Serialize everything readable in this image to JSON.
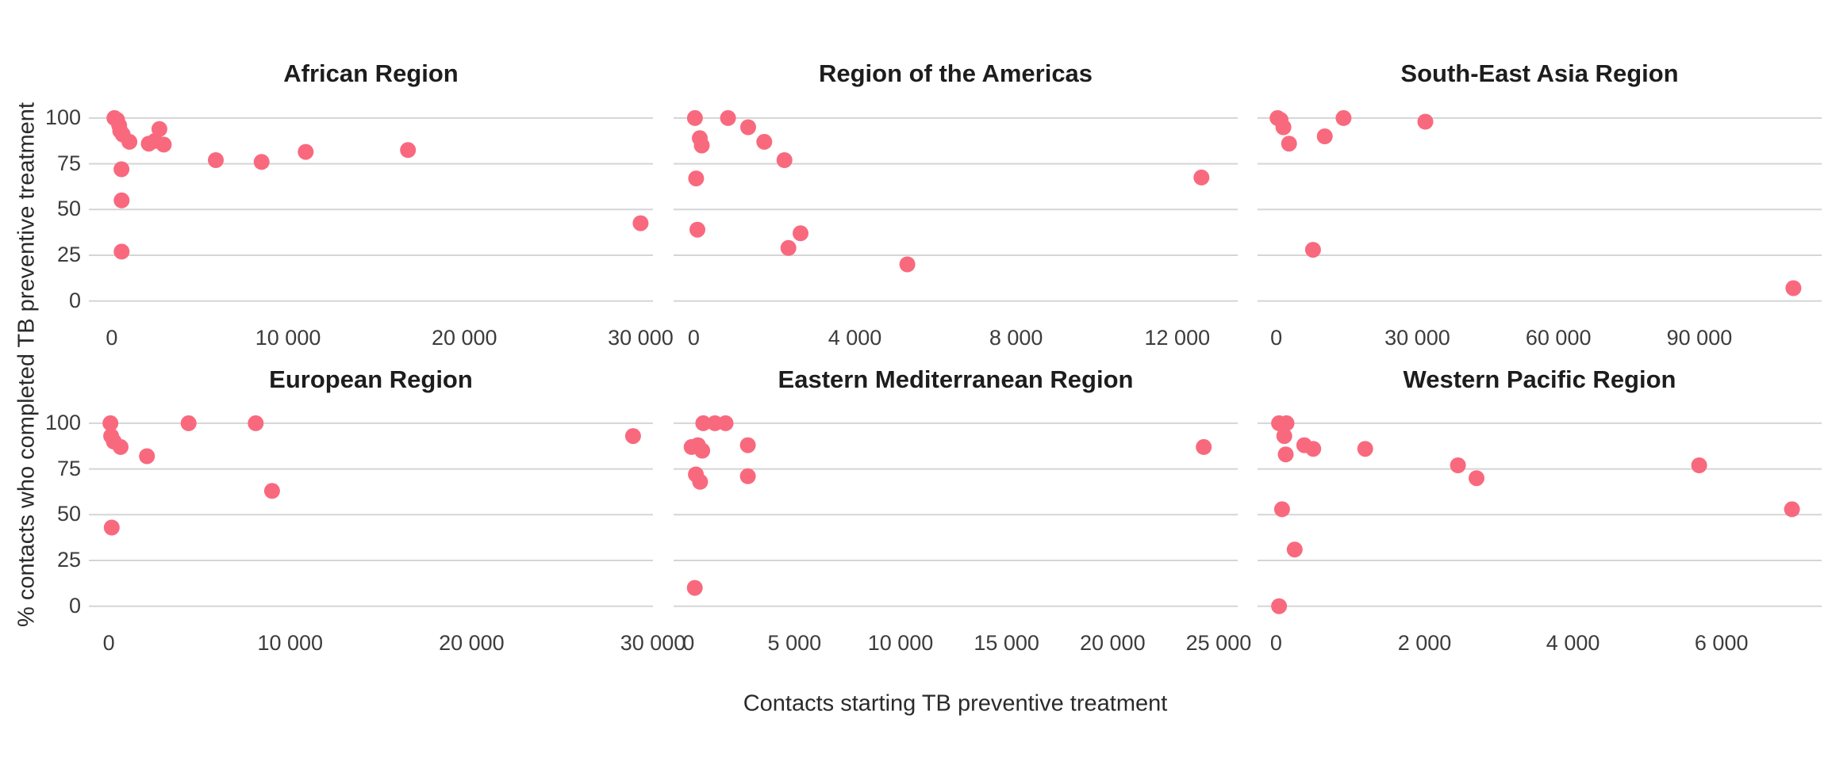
{
  "chart_data": {
    "type": "scatter",
    "xlabel": "Contacts starting TB preventive treatment",
    "ylabel": "% contacts who completed TB preventive treatment",
    "colors": {
      "point": "#F9697E",
      "gridline": "#D5D5D5",
      "panel_title": "#1D1D1D",
      "tick_text": "#3C3C3C",
      "axis_label_text": "#2A2A2A",
      "background": "#FFFFFF"
    },
    "grid": "horizontal-only",
    "legend": "none",
    "ylim": [
      -7.5,
      108.2
    ],
    "yticks": [
      {
        "v": 100,
        "label": "100"
      },
      {
        "v": 75,
        "label": "75"
      },
      {
        "v": 50,
        "label": "50"
      },
      {
        "v": 25,
        "label": "25"
      },
      {
        "v": 0,
        "label": "0"
      }
    ],
    "panels": [
      {
        "title": "African Region",
        "row": 0,
        "col": 0,
        "xlim": [
          -1300,
          30700
        ],
        "xticks": [
          {
            "v": 0,
            "label": "0"
          },
          {
            "v": 10000,
            "label": "10 000"
          },
          {
            "v": 20000,
            "label": "20 000"
          },
          {
            "v": 30000,
            "label": "30 000"
          }
        ],
        "points": [
          [
            150,
            100
          ],
          [
            300,
            99
          ],
          [
            420,
            96
          ],
          [
            480,
            93
          ],
          [
            620,
            91
          ],
          [
            1000,
            87
          ],
          [
            2100,
            86
          ],
          [
            2450,
            87.5
          ],
          [
            2700,
            94
          ],
          [
            2950,
            85.5
          ],
          [
            550,
            72
          ],
          [
            560,
            55
          ],
          [
            560,
            27
          ],
          [
            5900,
            77
          ],
          [
            8500,
            76
          ],
          [
            11000,
            81.5
          ],
          [
            16800,
            82.5
          ],
          [
            30000,
            42.5
          ]
        ]
      },
      {
        "title": "Region of the Americas",
        "row": 0,
        "col": 1,
        "xlim": [
          -500,
          13500
        ],
        "xticks": [
          {
            "v": 0,
            "label": "0"
          },
          {
            "v": 4000,
            "label": "4 000"
          },
          {
            "v": 8000,
            "label": "8 000"
          },
          {
            "v": 12000,
            "label": "12 000"
          }
        ],
        "points": [
          [
            30,
            100
          ],
          [
            850,
            100
          ],
          [
            1350,
            95
          ],
          [
            1750,
            87
          ],
          [
            2250,
            77
          ],
          [
            150,
            89
          ],
          [
            200,
            85
          ],
          [
            60,
            67
          ],
          [
            90,
            39
          ],
          [
            2650,
            37
          ],
          [
            2350,
            29
          ],
          [
            5300,
            20
          ],
          [
            12600,
            67.5
          ]
        ]
      },
      {
        "title": "South-East Asia Region",
        "row": 0,
        "col": 2,
        "xlim": [
          -4000,
          116000
        ],
        "xticks": [
          {
            "v": 0,
            "label": "0"
          },
          {
            "v": 30000,
            "label": "30 000"
          },
          {
            "v": 60000,
            "label": "60 000"
          },
          {
            "v": 90000,
            "label": "90 000"
          }
        ],
        "points": [
          [
            250,
            100
          ],
          [
            900,
            99
          ],
          [
            1500,
            95
          ],
          [
            2700,
            86
          ],
          [
            10300,
            90
          ],
          [
            14300,
            100
          ],
          [
            31700,
            98
          ],
          [
            7800,
            28
          ],
          [
            110000,
            7
          ]
        ]
      },
      {
        "title": "European Region",
        "row": 1,
        "col": 0,
        "xlim": [
          -1100,
          30000
        ],
        "xticks": [
          {
            "v": 0,
            "label": "0"
          },
          {
            "v": 10000,
            "label": "10 000"
          },
          {
            "v": 20000,
            "label": "20 000"
          },
          {
            "v": 30000,
            "label": "30 000"
          }
        ],
        "points": [
          [
            90,
            100
          ],
          [
            130,
            93
          ],
          [
            280,
            90
          ],
          [
            650,
            87
          ],
          [
            2100,
            82
          ],
          [
            4400,
            100
          ],
          [
            8100,
            100
          ],
          [
            9000,
            63
          ],
          [
            160,
            43
          ],
          [
            28900,
            93
          ]
        ]
      },
      {
        "title": "Eastern Mediterranean Region",
        "row": 1,
        "col": 1,
        "xlim": [
          -700,
          25900
        ],
        "xticks": [
          {
            "v": 0,
            "label": "0"
          },
          {
            "v": 5000,
            "label": "5 000"
          },
          {
            "v": 10000,
            "label": "10 000"
          },
          {
            "v": 15000,
            "label": "15 000"
          },
          {
            "v": 20000,
            "label": "20 000"
          },
          {
            "v": 25000,
            "label": "25 000"
          }
        ],
        "points": [
          [
            700,
            100
          ],
          [
            1250,
            100
          ],
          [
            1750,
            100
          ],
          [
            150,
            87
          ],
          [
            450,
            88
          ],
          [
            650,
            85
          ],
          [
            2800,
            88
          ],
          [
            2800,
            71
          ],
          [
            350,
            72
          ],
          [
            550,
            68
          ],
          [
            300,
            10
          ],
          [
            24300,
            87
          ]
        ]
      },
      {
        "title": "Western Pacific Region",
        "row": 1,
        "col": 2,
        "xlim": [
          -250,
          7350
        ],
        "xticks": [
          {
            "v": 0,
            "label": "0"
          },
          {
            "v": 2000,
            "label": "2 000"
          },
          {
            "v": 4000,
            "label": "4 000"
          },
          {
            "v": 6000,
            "label": "6 000"
          }
        ],
        "points": [
          [
            40,
            100
          ],
          [
            140,
            100
          ],
          [
            90,
            99
          ],
          [
            110,
            93
          ],
          [
            130,
            83
          ],
          [
            380,
            88
          ],
          [
            500,
            86
          ],
          [
            1200,
            86
          ],
          [
            2450,
            77
          ],
          [
            2700,
            70
          ],
          [
            5700,
            77
          ],
          [
            80,
            53
          ],
          [
            250,
            31
          ],
          [
            6950,
            53
          ],
          [
            40,
            0
          ]
        ]
      }
    ]
  }
}
